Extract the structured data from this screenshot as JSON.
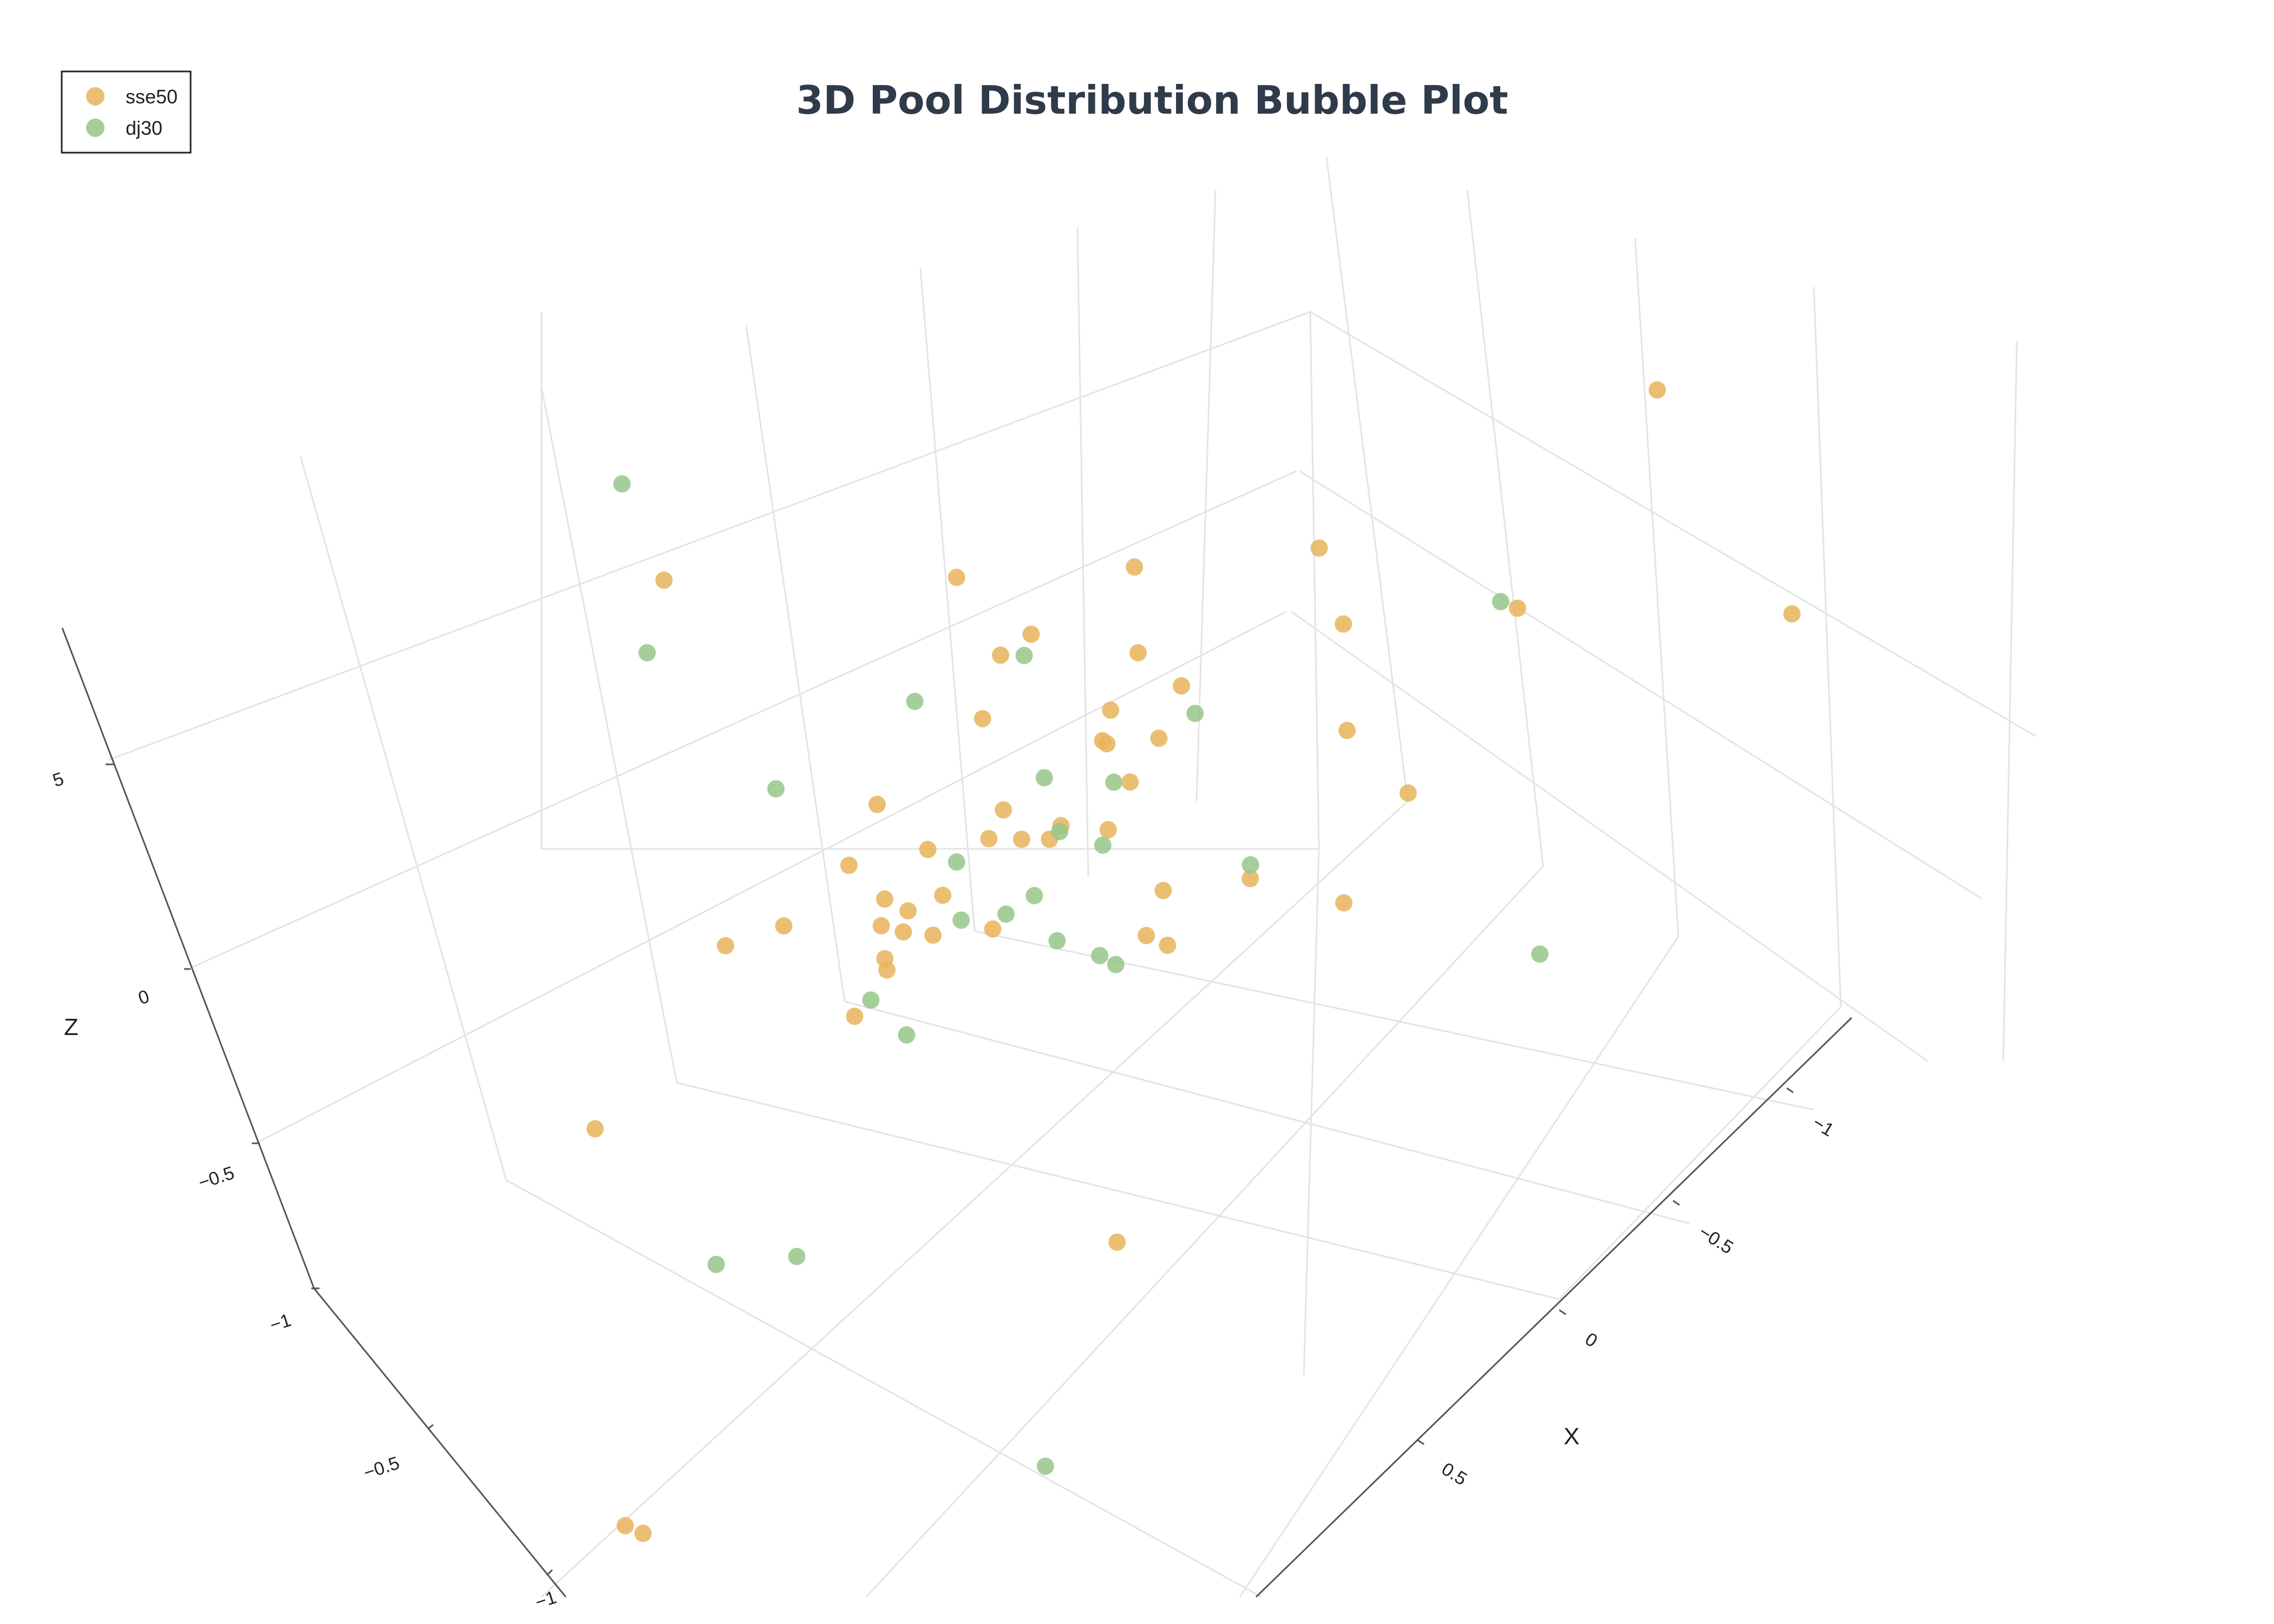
{
  "colors": {
    "sse50": "#e8b45a",
    "dj30": "#97c589"
  },
  "chart_data": {
    "type": "scatter",
    "dimension": "3d",
    "title": "3D Pool Distribution Bubble Plot",
    "xlabel": "X",
    "ylabel": "",
    "zlabel": "Z",
    "x_ticks": [
      "−1",
      "−0.5",
      "0",
      "0.5"
    ],
    "y_ticks": [
      "−1",
      "−0.5"
    ],
    "z_ticks": [
      "−1",
      "−0.5",
      "0",
      "5"
    ],
    "legend": {
      "position": "top-left",
      "entries": [
        {
          "key": "sse50",
          "label": "sse50"
        },
        {
          "key": "dj30",
          "label": "dj30"
        }
      ]
    },
    "series": [
      {
        "name": "sse50",
        "points": [
          [
            -0.55,
            0.72,
            -0.31
          ],
          [
            0.18,
            0.86,
            0.22
          ],
          [
            0.1,
            0.8,
            -0.45
          ],
          [
            -0.06,
            0.62,
            -0.25
          ],
          [
            0.27,
            0.07,
            0.14
          ],
          [
            0.27,
            -0.23,
            0.02
          ],
          [
            0.19,
            0.6,
            -0.29
          ],
          [
            -0.74,
            -0.43,
            0.37
          ],
          [
            0.13,
            0.44,
            -0.23
          ],
          [
            -0.1,
            0.42,
            -0.27
          ],
          [
            0.16,
            -0.11,
            0.55
          ],
          [
            0.11,
            0.17,
            -0.05
          ],
          [
            0.83,
            0.38,
            -0.84
          ],
          [
            -0.15,
            0.15,
            0.11
          ],
          [
            0.05,
            0.47,
            -0.35
          ],
          [
            0.14,
            0.33,
            -0.25
          ],
          [
            0.18,
            0.17,
            -0.16
          ],
          [
            0.81,
            0.36,
            -0.86
          ],
          [
            0.09,
            0.47,
            -0.39
          ],
          [
            0.1,
            0.12,
            -0.04
          ],
          [
            0.07,
            0.37,
            -0.24
          ],
          [
            0.09,
            -0.11,
            -0.06
          ],
          [
            -0.69,
            -0.18,
            -0.06
          ],
          [
            0.23,
            -0.24,
            -0.02
          ],
          [
            -0.11,
            0.19,
            -0.03
          ],
          [
            -0.29,
            -0.16,
            0.17
          ],
          [
            -0.16,
            -0.28,
            0.11
          ],
          [
            -0.1,
            -0.46,
            0.1
          ],
          [
            0.11,
            -0.31,
            0.04
          ],
          [
            0.13,
            0.07,
            0.02
          ],
          [
            0.06,
            0.5,
            -0.4
          ],
          [
            -0.5,
            -0.92,
            0.3
          ],
          [
            -0.05,
            0.02,
            0.07
          ],
          [
            -0.29,
            0.18,
            -0.05
          ],
          [
            0.05,
            0.46,
            -0.31
          ],
          [
            0.15,
            0.43,
            -0.26
          ],
          [
            -0.37,
            -0.04,
            0.21
          ],
          [
            -0.5,
            0.51,
            -0.34
          ],
          [
            0.66,
            0.59,
            -0.33
          ],
          [
            0.4,
            0.27,
            -0.2
          ],
          [
            0.03,
            0.06,
            0.1
          ],
          [
            0.02,
            0.02,
            0.04
          ],
          [
            -0.21,
            -0.23,
            -0.24
          ],
          [
            -0.23,
            0.6,
            0.04
          ],
          [
            0.05,
            0.04,
            -0.03
          ],
          [
            0.17,
            0.2,
            0.19
          ],
          [
            -0.14,
            0.43,
            0.02
          ],
          [
            0.02,
            0.61,
            -0.3
          ],
          [
            0.06,
            0.41,
            -0.18
          ],
          [
            0.92,
            -0.73,
            0.08
          ]
        ]
      },
      {
        "name": "dj30",
        "points": [
          [
            0.25,
            0.69,
            -0.87
          ],
          [
            -0.51,
            -0.3,
            0.11
          ],
          [
            0.61,
            0.21,
            -0.46
          ],
          [
            0.34,
            0.81,
            0.51
          ],
          [
            0.21,
            0.22,
            -0.04
          ],
          [
            0.07,
            0.72,
            -0.17
          ],
          [
            -0.64,
            -0.27,
            -0.6
          ],
          [
            -0.01,
            0.08,
            0.0
          ],
          [
            0.58,
            0.55,
            0.46
          ],
          [
            0.24,
            -0.14,
            -0.08
          ],
          [
            0.06,
            0.34,
            -0.28
          ],
          [
            -0.14,
            0.61,
            -0.12
          ],
          [
            0.09,
            0.22,
            -0.21
          ],
          [
            0.15,
            0.13,
            0.31
          ],
          [
            0.55,
            -0.26,
            -0.71
          ],
          [
            0.07,
            0.13,
            -0.24
          ],
          [
            0.21,
            0.4,
            -0.34
          ],
          [
            0.04,
            0.06,
            -0.07
          ],
          [
            -0.08,
            -0.03,
            0.11
          ],
          [
            -0.06,
            0.29,
            -0.3
          ],
          [
            -0.18,
            -0.06,
            -0.21
          ],
          [
            -0.2,
            0.39,
            -0.22
          ],
          [
            0.14,
            -0.02,
            -0.17
          ],
          [
            0.11,
            0.09,
            -0.01
          ],
          [
            0.1,
            0.42,
            -0.48
          ]
        ]
      }
    ]
  }
}
